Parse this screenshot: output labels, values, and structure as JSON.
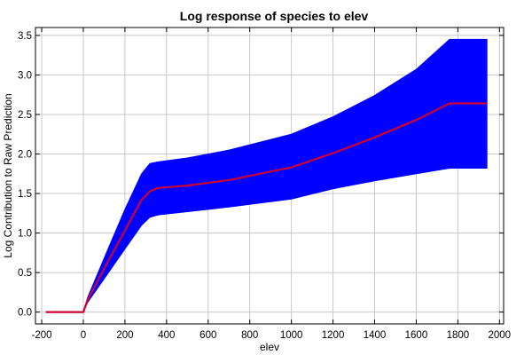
{
  "chart_data": {
    "type": "area",
    "title": "Log response of species to elev",
    "xlabel": "elev",
    "ylabel": "Log Contribution to Raw Prediction",
    "xlim": [
      -230,
      2020
    ],
    "ylim": [
      -0.15,
      3.6
    ],
    "xticks": [
      -200,
      0,
      200,
      400,
      600,
      800,
      1000,
      1200,
      1400,
      1600,
      1800,
      2000
    ],
    "yticks": [
      0.0,
      0.5,
      1.0,
      1.5,
      2.0,
      2.5,
      3.0,
      3.5
    ],
    "xtick_labels": [
      "-200",
      "0",
      "200",
      "400",
      "600",
      "800",
      "1000",
      "1200",
      "1400",
      "1600",
      "1800",
      "2000"
    ],
    "ytick_labels": [
      "0.0",
      "0.5",
      "1.0",
      "1.5",
      "2.0",
      "2.5",
      "3.0",
      "3.5"
    ],
    "grid": true,
    "series": [
      {
        "role": "confidence-band",
        "color": "#0000ff",
        "x": [
          -180,
          -5,
          0,
          20,
          100,
          200,
          280,
          320,
          360,
          500,
          700,
          1000,
          1200,
          1400,
          1600,
          1760,
          1940
        ],
        "upper": [
          0,
          0,
          0,
          0.18,
          0.68,
          1.3,
          1.75,
          1.88,
          1.9,
          1.95,
          2.05,
          2.25,
          2.47,
          2.74,
          3.07,
          3.45,
          3.45
        ],
        "lower": [
          0,
          0,
          0,
          0.12,
          0.42,
          0.8,
          1.1,
          1.2,
          1.23,
          1.27,
          1.33,
          1.43,
          1.56,
          1.66,
          1.75,
          1.82,
          1.82
        ]
      },
      {
        "role": "mean-response",
        "color": "#cc0033",
        "x": [
          -180,
          -5,
          0,
          20,
          100,
          200,
          280,
          320,
          360,
          500,
          700,
          1000,
          1200,
          1400,
          1600,
          1760,
          1940
        ],
        "y": [
          0,
          0,
          0,
          0.15,
          0.55,
          1.03,
          1.42,
          1.53,
          1.57,
          1.6,
          1.67,
          1.83,
          2.01,
          2.21,
          2.43,
          2.64,
          2.64
        ]
      }
    ]
  }
}
